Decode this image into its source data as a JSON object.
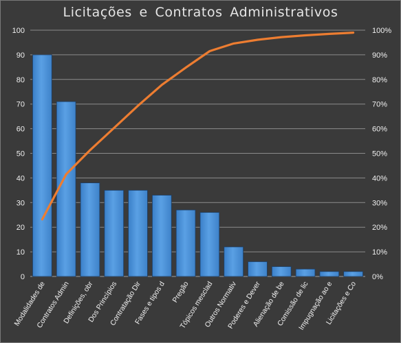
{
  "chart_data": {
    "type": "bar",
    "title": "Licitações  e  Contratos  Administrativos",
    "categories": [
      "Modalidades de",
      "Contratos Admin",
      "Definições, obr",
      "Dos Princípios",
      "Contratação Dir",
      "Fases e tipos d",
      "Pregão",
      "Tópicos mesclad",
      "Outros Normativ",
      "Poderes e Dever",
      "Alienação de be",
      "Comissão de lic",
      "Impugnação ao e",
      "Licitações e Co"
    ],
    "series": [
      {
        "type": "bar",
        "values": [
          90,
          71,
          38,
          35,
          35,
          33,
          27,
          26,
          12,
          6,
          4,
          3,
          2,
          2
        ],
        "color": "#4f95dc"
      },
      {
        "type": "line",
        "axis": "right",
        "values": [
          23.2,
          41.5,
          51.3,
          60.3,
          69.3,
          77.8,
          84.8,
          91.5,
          94.6,
          96.1,
          97.2,
          97.9,
          98.5,
          99.0
        ],
        "color": "#ed7d31"
      }
    ],
    "ylim": [
      0,
      100
    ],
    "y_ticks": [
      "0",
      "10",
      "20",
      "30",
      "40",
      "50",
      "60",
      "70",
      "80",
      "90",
      "100"
    ],
    "y2lim": [
      0,
      100
    ],
    "y2_ticks": [
      "0%",
      "10%",
      "20%",
      "30%",
      "40%",
      "50%",
      "60%",
      "70%",
      "80%",
      "90%",
      "100%"
    ],
    "xlabel": "",
    "ylabel": "",
    "grid": true,
    "legend": "none",
    "background": "#3a3a3a",
    "gridline_color": "#8c8c8c"
  }
}
